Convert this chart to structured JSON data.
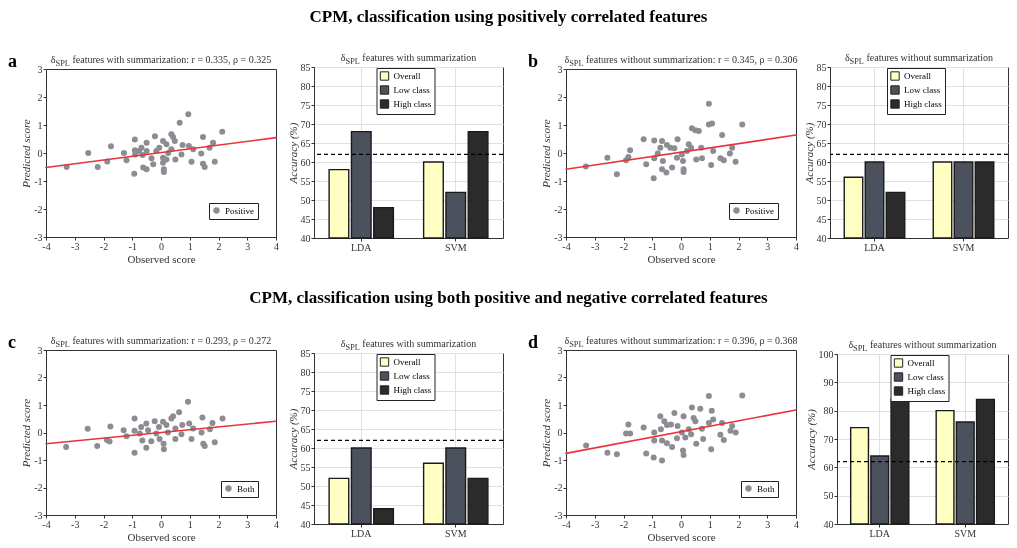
{
  "chart_data": [
    {
      "type": "scatter",
      "title": "δ$_{SPL}$ features with summarization: r = 0.335, ρ = 0.325",
      "xlabel": "Observed score",
      "ylabel": "Predicted score",
      "xlim": [
        -4,
        4
      ],
      "xticks": [
        -4,
        -3,
        -2,
        -1,
        0,
        1,
        2,
        3,
        4
      ],
      "ylim": [
        -3,
        3
      ],
      "yticks": [
        -3,
        -2,
        -1,
        0,
        1,
        2,
        3
      ],
      "legend": "bottom right",
      "annotations": [
        "a",
        "CPM, classification using positively correlated features"
      ],
      "series": [
        {
          "name": "Positive",
          "color": "#8c8c93",
          "marker": "circle",
          "x": [
            -3.28,
            -2.53,
            -2.2,
            -1.87,
            -1.74,
            -1.29,
            -1.2,
            -0.91,
            -0.91,
            -0.9,
            -0.93,
            -0.76,
            -0.68,
            -0.64,
            -0.62,
            -0.5,
            -0.5,
            -0.5,
            -0.33,
            -0.27,
            -0.21,
            -0.16,
            -0.06,
            0.07,
            0.07,
            0.07,
            0.1,
            0.1,
            0.19,
            0.25,
            0.19,
            0.36,
            0.42,
            0.36,
            0.48,
            0.5,
            0.65,
            0.71,
            0.75,
            0.95,
            0.97,
            1.06,
            1.12,
            1.46,
            1.4,
            1.46,
            1.52,
            1.69,
            1.81,
            1.87,
            2.13
          ],
          "values": [
            -0.5,
            0,
            -0.5,
            -0.3,
            0.24,
            0,
            -0.26,
            0.48,
            0.1,
            -0.05,
            -0.74,
            0.07,
            0.19,
            -0.07,
            -0.52,
            -0.58,
            0.37,
            0.07,
            -0.19,
            -0.4,
            0.6,
            0.07,
            0.19,
            0.43,
            -0.17,
            -0.35,
            -0.58,
            -0.68,
            0.31,
            0,
            -0.23,
            0.67,
            0.57,
            0.13,
            0.43,
            -0.23,
            1.08,
            -0.05,
            0.29,
            1.38,
            0.25,
            -0.31,
            0.13,
            0.57,
            -0.02,
            -0.38,
            -0.5,
            0.19,
            0.37,
            -0.31,
            0.76
          ]
        },
        {
          "type": "line",
          "color": "#e8333a",
          "x": [
            -4,
            4
          ],
          "values": [
            -0.52,
            0.55
          ]
        }
      ]
    },
    {
      "type": "bar",
      "title": "δ$_{SPL}$ features with summarization",
      "ylabel": "Accuracy (%)",
      "categories": [
        "LDA",
        "SVM"
      ],
      "ylim": [
        40,
        85
      ],
      "yticks": [
        40,
        45,
        50,
        55,
        60,
        65,
        70,
        75,
        80,
        85
      ],
      "grid": true,
      "legend": "top",
      "ref_lines": [
        {
          "axis": "y",
          "value": 62,
          "color": "#000000",
          "line_style": "dashed"
        }
      ],
      "series": [
        {
          "name": "Overall",
          "color": "#ffffc4",
          "values": [
            58,
            60
          ]
        },
        {
          "name": "Low class",
          "color": "#4b515d",
          "values": [
            68,
            52
          ]
        },
        {
          "name": "High class",
          "color": "#2b2b2b",
          "values": [
            48,
            68
          ]
        }
      ]
    },
    {
      "type": "scatter",
      "title": "δ$_{SPL}$ features without summarization: r = 0.345, ρ = 0.306",
      "xlabel": "Observed score",
      "ylabel": "Predicted score",
      "xlim": [
        -4,
        4
      ],
      "xticks": [
        -4,
        -3,
        -2,
        -1,
        0,
        1,
        2,
        3,
        4
      ],
      "ylim": [
        -3,
        3
      ],
      "yticks": [
        -3,
        -2,
        -1,
        0,
        1,
        2,
        3
      ],
      "legend": "bottom right",
      "annotations": [
        "b"
      ],
      "series": [
        {
          "name": "Positive",
          "color": "#8c8c93",
          "marker": "circle",
          "x": [
            -3.31,
            -2.56,
            -2.23,
            -1.91,
            -1.83,
            -1.77,
            -1.3,
            -1.21,
            -0.93,
            -0.93,
            -0.95,
            -0.81,
            -0.72,
            -0.66,
            -0.63,
            -0.66,
            -0.51,
            -0.49,
            -0.37,
            -0.31,
            -0.23,
            -0.12,
            -0.14,
            0.03,
            0.07,
            0.09,
            0.09,
            0.21,
            0.27,
            0.35,
            0.38,
            0.5,
            0.62,
            0.53,
            0.7,
            0.73,
            0.97,
            0.97,
            1.08,
            1.05,
            1.12,
            1.43,
            1.37,
            1.49,
            1.7,
            1.78,
            1.9,
            2.13
          ],
          "values": [
            -0.48,
            -0.17,
            -0.76,
            -0.26,
            -0.14,
            0.1,
            0.49,
            -0.4,
            0.45,
            -0.19,
            -0.9,
            -0.02,
            0.19,
            0.43,
            -0.29,
            -0.58,
            -0.7,
            0.29,
            0.19,
            -0.52,
            0.17,
            0.49,
            -0.17,
            -0.05,
            -0.29,
            -0.58,
            -0.68,
            0.07,
            0.31,
            0.19,
            0.88,
            0.81,
            0.79,
            -0.23,
            0.19,
            -0.19,
            1.76,
            1.02,
            1.05,
            -0.43,
            0.07,
            0.64,
            -0.19,
            -0.26,
            -0.02,
            0.19,
            -0.31,
            1.02
          ]
        },
        {
          "type": "line",
          "color": "#e8333a",
          "x": [
            -4,
            4
          ],
          "values": [
            -0.58,
            0.64
          ]
        }
      ]
    },
    {
      "type": "bar",
      "title": "δ$_{SPL}$ features without summarization",
      "ylabel": "Accuracy (%)",
      "categories": [
        "LDA",
        "SVM"
      ],
      "ylim": [
        40,
        85
      ],
      "yticks": [
        40,
        45,
        50,
        55,
        60,
        65,
        70,
        75,
        80,
        85
      ],
      "grid": true,
      "legend": "top",
      "ref_lines": [
        {
          "axis": "y",
          "value": 62,
          "color": "#000000",
          "line_style": "dashed"
        }
      ],
      "series": [
        {
          "name": "Overall",
          "color": "#ffffc4",
          "values": [
            56,
            60
          ]
        },
        {
          "name": "Low class",
          "color": "#4b515d",
          "values": [
            60,
            60
          ]
        },
        {
          "name": "High class",
          "color": "#2b2b2b",
          "values": [
            52,
            60
          ]
        }
      ]
    },
    {
      "type": "scatter",
      "title": "δ$_{SPL}$ features with summarization: r = 0.293, ρ = 0.272",
      "xlabel": "Observed score",
      "ylabel": "Predicted score",
      "xlim": [
        -4,
        4
      ],
      "xticks": [
        -4,
        -3,
        -2,
        -1,
        0,
        1,
        2,
        3,
        4
      ],
      "ylim": [
        -3,
        3
      ],
      "yticks": [
        -3,
        -2,
        -1,
        0,
        1,
        2,
        3
      ],
      "legend": "bottom right",
      "annotations": [
        "c",
        "CPM, classification using both positive and negative correlated features"
      ],
      "series": [
        {
          "name": "Both",
          "color": "#8c8c93",
          "marker": "circle",
          "x": [
            -3.3,
            -2.55,
            -2.22,
            -1.88,
            -1.79,
            -1.76,
            -1.3,
            -1.2,
            -0.92,
            -0.92,
            -0.92,
            -0.74,
            -0.69,
            -0.65,
            -0.51,
            -0.51,
            -0.45,
            -0.34,
            -0.22,
            -0.16,
            -0.07,
            -0.05,
            0.07,
            0.09,
            0.1,
            0.19,
            0.24,
            0.36,
            0.42,
            0.5,
            0.5,
            0.63,
            0.71,
            0.74,
            0.94,
            0.98,
            1.06,
            1.12,
            1.44,
            1.41,
            1.47,
            1.52,
            1.7,
            1.79,
            1.87,
            2.14
          ],
          "values": [
            -0.53,
            0.14,
            -0.49,
            -0.27,
            -0.33,
            0.22,
            0.08,
            -0.14,
            0.51,
            0.06,
            -0.74,
            -0.04,
            0.2,
            -0.29,
            -0.55,
            0.33,
            0.08,
            -0.32,
            0.41,
            -0.04,
            0.2,
            -0.24,
            0.39,
            -0.41,
            -0.61,
            0.27,
            0,
            0.51,
            0.59,
            0.15,
            -0.24,
            0.74,
            -0.06,
            0.27,
            1.12,
            0.33,
            -0.24,
            0.15,
            0.55,
            0,
            -0.41,
            -0.49,
            0.12,
            0.35,
            -0.35,
            0.51
          ]
        },
        {
          "type": "line",
          "color": "#e8333a",
          "x": [
            -4,
            4
          ],
          "values": [
            -0.41,
            0.41
          ]
        }
      ]
    },
    {
      "type": "bar",
      "title": "δ$_{SPL}$ features with summarization",
      "ylabel": "Accuracy (%)",
      "categories": [
        "LDA",
        "SVM"
      ],
      "ylim": [
        40,
        85
      ],
      "yticks": [
        40,
        45,
        50,
        55,
        60,
        65,
        70,
        75,
        80,
        85
      ],
      "grid": true,
      "legend": "top",
      "ref_lines": [
        {
          "axis": "y",
          "value": 62,
          "color": "#000000",
          "line_style": "dashed"
        }
      ],
      "series": [
        {
          "name": "Overall",
          "color": "#ffffc4",
          "values": [
            52,
            56
          ]
        },
        {
          "name": "Low class",
          "color": "#4b515d",
          "values": [
            60,
            60
          ]
        },
        {
          "name": "High class",
          "color": "#2b2b2b",
          "values": [
            44,
            52
          ]
        }
      ]
    },
    {
      "type": "scatter",
      "title": "δ$_{SPL}$ features without summarization: r = 0.396, ρ = 0.368",
      "xlabel": "Observed score",
      "ylabel": "Predicted score",
      "xlim": [
        -4,
        4
      ],
      "xticks": [
        -4,
        -3,
        -2,
        -1,
        0,
        1,
        2,
        3,
        4
      ],
      "ylim": [
        -3,
        3
      ],
      "yticks": [
        -3,
        -2,
        -1,
        0,
        1,
        2,
        3
      ],
      "legend": "bottom right",
      "annotations": [
        "d"
      ],
      "series": [
        {
          "name": "Both",
          "color": "#8c8c93",
          "marker": "circle",
          "x": [
            -3.3,
            -2.56,
            -2.23,
            -1.91,
            -1.83,
            -1.77,
            -1.3,
            -1.21,
            -0.93,
            -0.93,
            -0.95,
            -0.72,
            -0.7,
            -0.66,
            -0.66,
            -0.58,
            -0.49,
            -0.49,
            -0.35,
            -0.31,
            -0.23,
            -0.12,
            -0.14,
            0.03,
            0.07,
            0.09,
            0.09,
            0.15,
            0.27,
            0.35,
            0.38,
            0.44,
            0.5,
            0.53,
            0.67,
            0.73,
            0.77,
            0.97,
            0.97,
            1.07,
            1.05,
            1.12,
            1.43,
            1.37,
            1.49,
            1.72,
            1.78,
            1.9,
            2.13
          ],
          "values": [
            -0.47,
            -0.74,
            -0.79,
            -0.04,
            0.29,
            -0.04,
            0.18,
            -0.76,
            0,
            -0.29,
            -0.91,
            0.59,
            0.12,
            -0.29,
            -1.02,
            0.41,
            0.27,
            -0.39,
            0.29,
            -0.53,
            0.71,
            0.24,
            -0.21,
            0,
            -0.65,
            -0.82,
            0.59,
            -0.18,
            0.12,
            -0.06,
            0.91,
            0.53,
            0.41,
            -0.41,
            0.86,
            0.14,
            -0.24,
            1.33,
            0.35,
            0.79,
            -0.61,
            0.47,
            0.35,
            -0.08,
            -0.27,
            0.06,
            0.24,
            0,
            1.35
          ]
        },
        {
          "type": "line",
          "color": "#e8333a",
          "x": [
            -4,
            4
          ],
          "values": [
            -0.76,
            0.82
          ]
        }
      ]
    },
    {
      "type": "bar",
      "title": "δ$_{SPL}$ features without summarization",
      "ylabel": "Accuracy (%)",
      "categories": [
        "LDA",
        "SVM"
      ],
      "ylim": [
        40,
        100
      ],
      "yticks": [
        40,
        50,
        60,
        70,
        80,
        90,
        100
      ],
      "grid": true,
      "legend": "top",
      "ref_lines": [
        {
          "axis": "y",
          "value": 62,
          "color": "#000000",
          "line_style": "dashed"
        }
      ],
      "series": [
        {
          "name": "Overall",
          "color": "#ffffc4",
          "values": [
            74,
            80
          ]
        },
        {
          "name": "Low class",
          "color": "#4b515d",
          "values": [
            64,
            76
          ]
        },
        {
          "name": "High class",
          "color": "#2b2b2b",
          "values": [
            84,
            84
          ]
        }
      ]
    }
  ]
}
